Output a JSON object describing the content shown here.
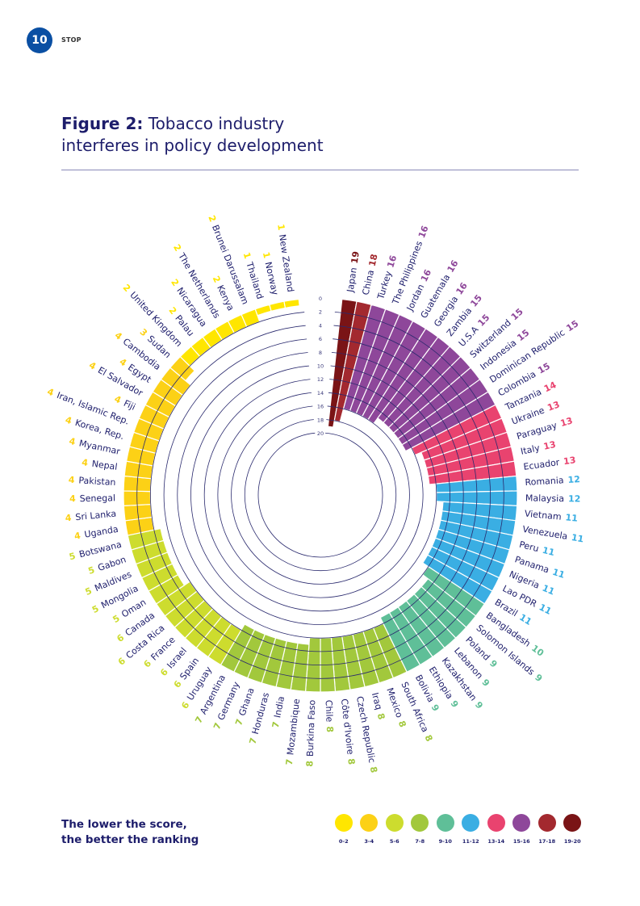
{
  "header": {
    "page_number": "10",
    "section": "STOP"
  },
  "figure": {
    "title_bold": "Figure 2:",
    "title_rest": " Tobacco industry",
    "title_line2": "interferes in policy development"
  },
  "note": {
    "line1": "The lower the score,",
    "line2": "the better the ranking"
  },
  "legend": [
    {
      "label": "0-2",
      "color": "#FFE600"
    },
    {
      "label": "3-4",
      "color": "#FCD116"
    },
    {
      "label": "5-6",
      "color": "#CDDC2E"
    },
    {
      "label": "7-8",
      "color": "#A2C83C"
    },
    {
      "label": "9-10",
      "color": "#5FBF98"
    },
    {
      "label": "11-12",
      "color": "#3AAEE3"
    },
    {
      "label": "13-14",
      "color": "#E9436F"
    },
    {
      "label": "15-16",
      "color": "#8E479A"
    },
    {
      "label": "17-18",
      "color": "#A3292F"
    },
    {
      "label": "19-20",
      "color": "#7A1416"
    }
  ],
  "chart_data": {
    "type": "radial-bar",
    "title": "Tobacco industry interferes in policy development",
    "axis_ticks": [
      "0",
      "2",
      "4",
      "6",
      "8",
      "10",
      "12",
      "14",
      "16",
      "18",
      "20"
    ],
    "axis_range": [
      0,
      20
    ],
    "direction": "bars extend inward from 0 (outer ring) to score",
    "categories": [
      "Japan",
      "China",
      "Turkey",
      "The Philippines",
      "Jordan",
      "Guatemala",
      "Georgia",
      "Zambia",
      "U.S.A",
      "Switzerland",
      "Indonesia",
      "Dominican Republic",
      "Colombia",
      "Tanzania",
      "Ukraine",
      "Paraguay",
      "Italy",
      "Ecuador",
      "Romania",
      "Malaysia",
      "Vietnam",
      "Venezuela",
      "Peru",
      "Panama",
      "Nigeria",
      "Lao PDR",
      "Brazil",
      "Bangladesh",
      "Solomon Islands",
      "Poland",
      "Lebanon",
      "Kazakhstan",
      "Ethiopia",
      "Bolivia",
      "South Africa",
      "Mexico",
      "Iraq",
      "Czech Republic",
      "Côte d'Ivoire",
      "Chile",
      "Burkina Faso",
      "Mozambique",
      "India",
      "Honduras",
      "Ghana",
      "Germany",
      "Argentina",
      "Uruguay",
      "Spain",
      "Israel",
      "France",
      "Costa Rica",
      "Canada",
      "Oman",
      "Mongolia",
      "Maldives",
      "Gabon",
      "Botswana",
      "Uganda",
      "Sri Lanka",
      "Senegal",
      "Pakistan",
      "Nepal",
      "Myanmar",
      "Korea, Rep.",
      "Iran, Islamic Rep.",
      "Fiji",
      "El Salvador",
      "Egypt",
      "Cambodia",
      "Sudan",
      "United Kingdom",
      "Palau",
      "Nicaragua",
      "The Netherlands",
      "Kenya",
      "Brunei Darussalam",
      "Thailand",
      "Norway",
      "New Zealand"
    ],
    "values": [
      19,
      18,
      16,
      16,
      16,
      16,
      16,
      15,
      15,
      15,
      15,
      15,
      15,
      14,
      13,
      13,
      13,
      13,
      12,
      12,
      11,
      11,
      11,
      11,
      11,
      11,
      11,
      10,
      9,
      9,
      9,
      9,
      9,
      9,
      8,
      8,
      8,
      8,
      8,
      8,
      8,
      7,
      7,
      7,
      7,
      7,
      7,
      6,
      6,
      6,
      6,
      6,
      6,
      5,
      5,
      5,
      5,
      5,
      4,
      4,
      4,
      4,
      4,
      4,
      4,
      4,
      4,
      4,
      4,
      4,
      3,
      2,
      2,
      2,
      2,
      2,
      2,
      1,
      1,
      1
    ],
    "grid": true
  }
}
